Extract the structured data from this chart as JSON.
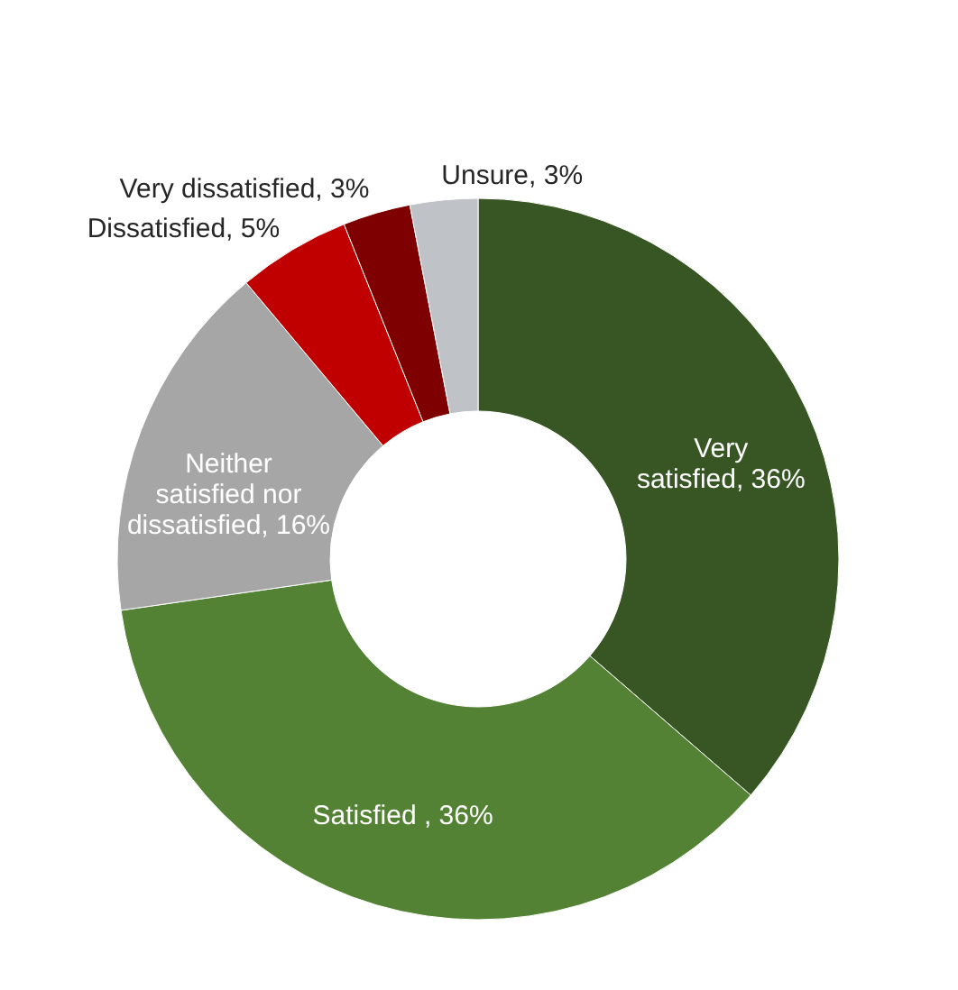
{
  "chart_data": {
    "type": "donut",
    "categories": [
      "Very satisfied",
      "Satisfied ",
      "Neither satisfied nor dissatisfied",
      "Dissatisfied",
      "Very dissatisfied",
      "Unsure"
    ],
    "values": [
      36,
      36,
      16,
      5,
      3,
      3
    ],
    "value_labels": [
      "36%",
      "36%",
      "16%",
      "5%",
      "3%",
      "3%"
    ],
    "colors": [
      "#375623",
      "#548235",
      "#a6a6a6",
      "#c00000",
      "#7f0000",
      "#bfc3c8"
    ]
  }
}
